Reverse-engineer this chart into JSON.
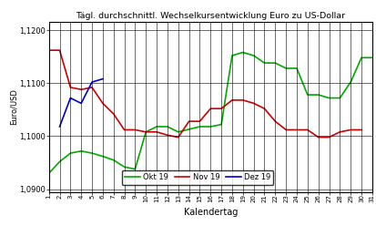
{
  "title": "Tägl. durchschnittl. Wechselkursentwicklung Euro zu US-Dollar",
  "xlabel": "Kalendertag",
  "ylabel": "Euro/USD",
  "ylim": [
    1.0895,
    1.1215
  ],
  "legend_labels": [
    "Okt 19",
    "Nov 19",
    "Dez 19"
  ],
  "legend_colors": [
    "#00aa00",
    "#cc0000",
    "#0000cc"
  ],
  "okt19": {
    "days": [
      1,
      2,
      3,
      4,
      5,
      6,
      7,
      8,
      9,
      10,
      11,
      12,
      13,
      14,
      15,
      16,
      17,
      18,
      19,
      20,
      21,
      22,
      23,
      24,
      25,
      26,
      27,
      28,
      29,
      30,
      31
    ],
    "values": [
      1.093,
      1.0952,
      1.0968,
      1.0972,
      1.0968,
      1.0962,
      1.0955,
      1.0942,
      1.0938,
      1.1008,
      1.1018,
      1.1018,
      1.1008,
      1.1013,
      1.1018,
      1.1018,
      1.1022,
      1.1152,
      1.1158,
      1.1152,
      1.1138,
      1.1138,
      1.1128,
      1.1128,
      1.1078,
      1.1078,
      1.1072,
      1.1072,
      1.1102,
      1.1148,
      1.1148
    ]
  },
  "nov19": {
    "days": [
      1,
      2,
      3,
      4,
      5,
      6,
      7,
      8,
      9,
      10,
      11,
      12,
      13,
      14,
      15,
      16,
      17,
      18,
      19,
      20,
      21,
      22,
      23,
      24,
      25,
      26,
      27,
      28,
      29,
      30
    ],
    "values": [
      1.1162,
      1.1162,
      1.1092,
      1.1088,
      1.1092,
      1.1062,
      1.1042,
      1.1012,
      1.1012,
      1.1008,
      1.1008,
      1.1002,
      1.0998,
      1.1028,
      1.1028,
      1.1052,
      1.1052,
      1.1068,
      1.1068,
      1.1062,
      1.1052,
      1.1028,
      1.1012,
      1.1012,
      1.1012,
      1.0998,
      1.0998,
      1.1008,
      1.1012,
      1.1012
    ]
  },
  "dez19": {
    "days": [
      2,
      3,
      4,
      5,
      6
    ],
    "values": [
      1.1018,
      1.1072,
      1.1062,
      1.1102,
      1.1108
    ]
  },
  "background_color": "#ffffff",
  "plot_bg_color": "#ffffff",
  "grid_color": "#000000",
  "line_width": 1.2
}
